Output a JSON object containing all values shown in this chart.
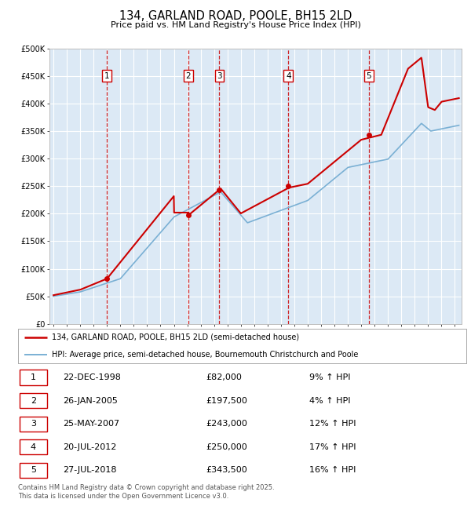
{
  "title": "134, GARLAND ROAD, POOLE, BH15 2LD",
  "subtitle": "Price paid vs. HM Land Registry's House Price Index (HPI)",
  "background_color": "#dce9f5",
  "plot_bg_color": "#dce9f5",
  "fig_bg_color": "#ffffff",
  "hpi_line_color": "#7ab0d4",
  "price_line_color": "#cc0000",
  "vline_color": "#cc0000",
  "grid_color": "#ffffff",
  "ylim": [
    0,
    500000
  ],
  "yticks": [
    0,
    50000,
    100000,
    150000,
    200000,
    250000,
    300000,
    350000,
    400000,
    450000,
    500000
  ],
  "xlim_start": 1994.7,
  "xlim_end": 2025.5,
  "transactions": [
    {
      "num": 1,
      "date_str": "22-DEC-1998",
      "date_x": 1998.97,
      "price": 82000,
      "pct": "9%",
      "dir": "↑"
    },
    {
      "num": 2,
      "date_str": "26-JAN-2005",
      "date_x": 2005.07,
      "price": 197500,
      "pct": "4%",
      "dir": "↑"
    },
    {
      "num": 3,
      "date_str": "25-MAY-2007",
      "date_x": 2007.4,
      "price": 243000,
      "pct": "12%",
      "dir": "↑"
    },
    {
      "num": 4,
      "date_str": "20-JUL-2012",
      "date_x": 2012.55,
      "price": 250000,
      "pct": "17%",
      "dir": "↑"
    },
    {
      "num": 5,
      "date_str": "27-JUL-2018",
      "date_x": 2018.57,
      "price": 343500,
      "pct": "16%",
      "dir": "↑"
    }
  ],
  "legend_line1": "134, GARLAND ROAD, POOLE, BH15 2LD (semi-detached house)",
  "legend_line2": "HPI: Average price, semi-detached house, Bournemouth Christchurch and Poole",
  "footnote": "Contains HM Land Registry data © Crown copyright and database right 2025.\nThis data is licensed under the Open Government Licence v3.0.",
  "table_rows": [
    [
      "1",
      "22-DEC-1998",
      "£82,000",
      "9% ↑ HPI"
    ],
    [
      "2",
      "26-JAN-2005",
      "£197,500",
      "4% ↑ HPI"
    ],
    [
      "3",
      "25-MAY-2007",
      "£243,000",
      "12% ↑ HPI"
    ],
    [
      "4",
      "20-JUL-2012",
      "£250,000",
      "17% ↑ HPI"
    ],
    [
      "5",
      "27-JUL-2018",
      "£343,500",
      "16% ↑ HPI"
    ]
  ]
}
